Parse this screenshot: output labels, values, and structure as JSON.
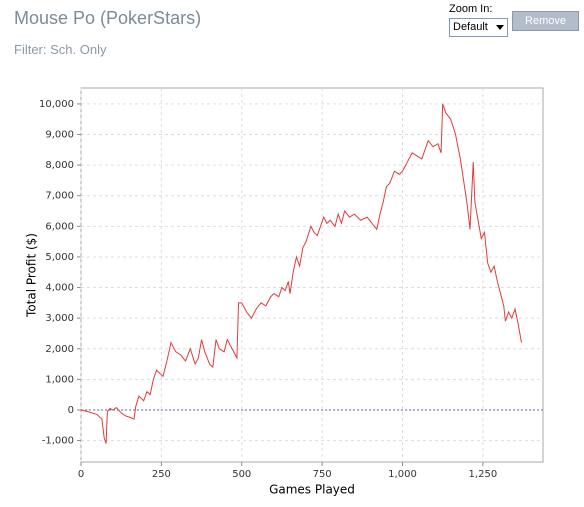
{
  "controls": {
    "zoom_label": "Zoom In:",
    "zoom_value": "Default",
    "button": "Remove"
  },
  "chart_data": {
    "type": "line",
    "title": "Mouse Po (PokerStars)",
    "subtitle": "Filter: Sch. Only",
    "x_label": "Games Played",
    "y_label": "Total Profit ($)",
    "color": "#e03c3c",
    "grid": true,
    "xlim": [
      0,
      1437
    ],
    "ylim": [
      -1700,
      10520
    ],
    "xticks": [
      0,
      250,
      500,
      750,
      {
        "value": 1000,
        "label": "1,000"
      },
      {
        "value": 1250,
        "label": "1,250"
      }
    ],
    "yticks": [
      {
        "value": -1000,
        "label": "-1,000"
      },
      0,
      {
        "value": 1000,
        "label": "1,000"
      },
      {
        "value": 2000,
        "label": "2,000"
      },
      {
        "value": 3000,
        "label": "3,000"
      },
      {
        "value": 4000,
        "label": "4,000"
      },
      {
        "value": 5000,
        "label": "5,000"
      },
      {
        "value": 6000,
        "label": "6,000"
      },
      {
        "value": 7000,
        "label": "7,000"
      },
      {
        "value": 8000,
        "label": "8,000"
      },
      {
        "value": 9000,
        "label": "9,000"
      },
      {
        "value": 10000,
        "label": "10,000"
      }
    ],
    "x": [
      0,
      20,
      50,
      65,
      72,
      78,
      82,
      90,
      100,
      110,
      125,
      140,
      155,
      165,
      170,
      180,
      195,
      205,
      215,
      225,
      235,
      245,
      255,
      265,
      280,
      295,
      310,
      325,
      340,
      355,
      365,
      375,
      385,
      400,
      410,
      420,
      430,
      445,
      455,
      470,
      485,
      490,
      500,
      515,
      530,
      545,
      560,
      575,
      590,
      600,
      615,
      625,
      635,
      645,
      650,
      660,
      670,
      680,
      690,
      700,
      715,
      725,
      735,
      745,
      755,
      765,
      775,
      790,
      800,
      810,
      820,
      835,
      850,
      870,
      890,
      905,
      920,
      930,
      940,
      950,
      960,
      975,
      990,
      1000,
      1015,
      1030,
      1045,
      1060,
      1070,
      1080,
      1095,
      1110,
      1120,
      1125,
      1135,
      1150,
      1165,
      1180,
      1190,
      1200,
      1210,
      1215,
      1220,
      1225,
      1235,
      1245,
      1255,
      1265,
      1275,
      1285,
      1295,
      1305,
      1315,
      1320,
      1330,
      1340,
      1350,
      1360,
      1370
    ],
    "values": [
      0,
      -50,
      -150,
      -300,
      -900,
      -1100,
      -50,
      50,
      0,
      80,
      -100,
      -200,
      -250,
      -300,
      100,
      450,
      300,
      600,
      500,
      1000,
      1300,
      1200,
      1100,
      1500,
      2200,
      1900,
      1800,
      1600,
      2000,
      1500,
      1700,
      2300,
      1900,
      1500,
      1400,
      2300,
      2000,
      1900,
      2300,
      2000,
      1700,
      3500,
      3500,
      3200,
      3000,
      3300,
      3500,
      3400,
      3700,
      3800,
      3700,
      4000,
      3900,
      4200,
      3800,
      4500,
      5000,
      4700,
      5300,
      5500,
      6000,
      5800,
      5700,
      6000,
      6300,
      6100,
      6200,
      6000,
      6400,
      6100,
      6500,
      6300,
      6400,
      6200,
      6300,
      6100,
      5900,
      6400,
      6800,
      7300,
      7400,
      7800,
      7700,
      7800,
      8100,
      8400,
      8300,
      8200,
      8500,
      8800,
      8600,
      8700,
      8400,
      10000,
      9700,
      9500,
      9000,
      8200,
      7500,
      6800,
      5900,
      7000,
      8100,
      6800,
      6200,
      5600,
      5800,
      4800,
      4500,
      4700,
      4200,
      3800,
      3400,
      2900,
      3200,
      3000,
      3300,
      2800,
      2200
    ]
  }
}
